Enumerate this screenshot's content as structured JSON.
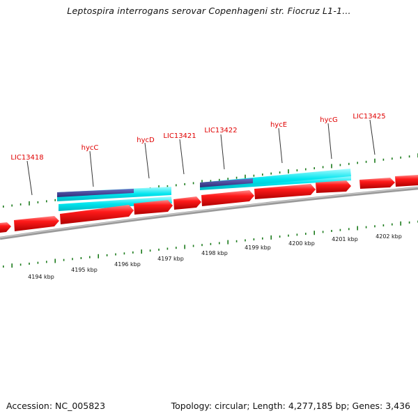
{
  "title": "Leptospira interrogans serovar Copenhageni str. Fiocruz L1-1...",
  "gene_labels": [
    "LIC13418",
    "hycC",
    "hycD",
    "LIC13421",
    "LIC13422",
    "hycE",
    "hycG",
    "LIC13425"
  ],
  "kbp_labels": [
    "4194 kbp",
    "4195 kbp",
    "4196 kbp",
    "4197 kbp",
    "4198 kbp",
    "4199 kbp",
    "4200 kbp",
    "4201 kbp",
    "4202 kbp"
  ],
  "colors": {
    "gene": "#ff0000",
    "gene_highlight": "#ff7a7a",
    "gene_shadow": "#a30000",
    "domain_cyan": "#00e5ee",
    "domain_navy": "#3b3b8f",
    "tick": "#1a7a1a",
    "backbone": "#888888",
    "label": "#e00000"
  },
  "footer": {
    "accession": "Accession: NC_005823",
    "stats": "Topology: circular; Length: 4,277,185 bp; Genes: 3,436"
  }
}
